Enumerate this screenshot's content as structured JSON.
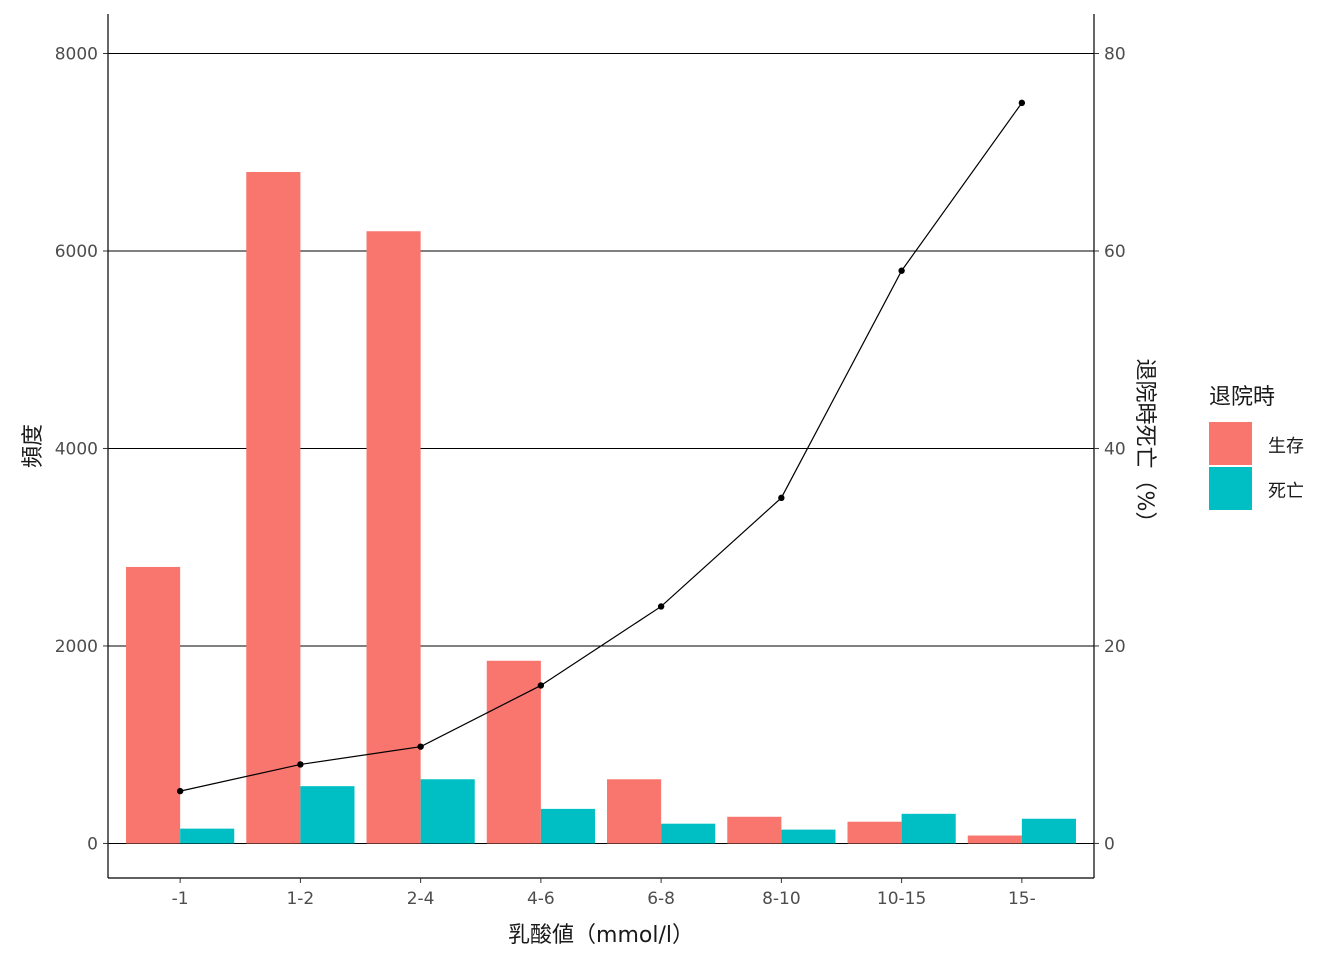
{
  "chart_data": {
    "type": "bar",
    "categories": [
      "-1",
      "1-2",
      "2-4",
      "4-6",
      "6-8",
      "8-10",
      "10-15",
      "15-"
    ],
    "series": [
      {
        "name": "生存",
        "color": "#F8766D",
        "values": [
          2800,
          6800,
          6200,
          1850,
          650,
          270,
          220,
          80
        ]
      },
      {
        "name": "死亡",
        "color": "#00BFC4",
        "values": [
          150,
          580,
          650,
          350,
          200,
          140,
          300,
          250
        ]
      }
    ],
    "line_series": {
      "axis": "secondary",
      "color": "#000000",
      "values": [
        5.3,
        8.0,
        9.8,
        16.0,
        24.0,
        35.0,
        58.0,
        75.0
      ]
    },
    "xlabel": "乳酸値（mmol/l）",
    "ylabel": "頻度",
    "ylabel_right": "退院時死亡（%）",
    "ylim": [
      -350,
      8400
    ],
    "y_ticks": [
      "0",
      "2000",
      "4000",
      "6000",
      "8000"
    ],
    "y_tick_values": [
      0,
      2000,
      4000,
      6000,
      8000
    ],
    "y2lim": [
      -3.5,
      84
    ],
    "y2_ticks": [
      "0",
      "20",
      "40",
      "60",
      "80"
    ],
    "y2_tick_values": [
      0,
      20,
      40,
      60,
      80
    ],
    "grid": "horizontal major",
    "legend": {
      "title": "退院時",
      "position": "right",
      "items": [
        "生存",
        "死亡"
      ]
    }
  }
}
